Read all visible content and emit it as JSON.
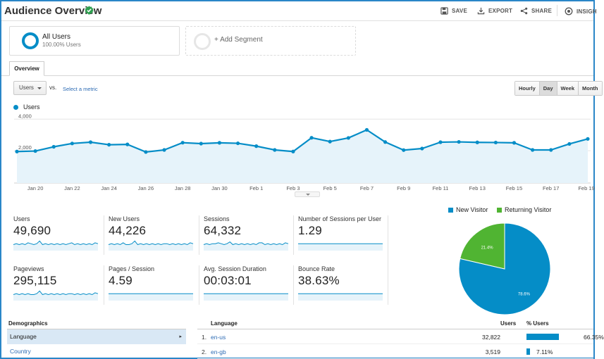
{
  "header": {
    "title": "Audience Overview",
    "actions": [
      {
        "label": "SAVE",
        "icon": "save-icon"
      },
      {
        "label": "EXPORT",
        "icon": "export-icon"
      },
      {
        "label": "SHARE",
        "icon": "share-icon"
      },
      {
        "label": "INSIGH",
        "icon": "insights-icon"
      }
    ]
  },
  "segments": {
    "active": {
      "name": "All Users",
      "sub": "100.00% Users"
    },
    "add_label": "+ Add Segment"
  },
  "tabs": {
    "overview": "Overview"
  },
  "controls": {
    "metric": "Users",
    "vs": "vs.",
    "select_metric": "Select a metric",
    "granularity": [
      "Hourly",
      "Day",
      "Week",
      "Month"
    ],
    "granularity_active": "Day"
  },
  "chart_data": {
    "type": "line",
    "series": [
      {
        "name": "Users",
        "color": "#058dc7",
        "values": [
          1950,
          1980,
          2250,
          2460,
          2540,
          2380,
          2400,
          1920,
          2050,
          2510,
          2450,
          2500,
          2470,
          2290,
          2050,
          1950,
          2820,
          2580,
          2810,
          3320,
          2550,
          2040,
          2140,
          2540,
          2560,
          2530,
          2520,
          2500,
          2050,
          2050,
          2430,
          2750
        ]
      }
    ],
    "x_ticks": [
      "Jan 20",
      "Jan 22",
      "Jan 24",
      "Jan 26",
      "Jan 28",
      "Jan 30",
      "Feb 1",
      "Feb 3",
      "Feb 5",
      "Feb 7",
      "Feb 9",
      "Feb 11",
      "Feb 13",
      "Feb 15",
      "Feb 17",
      "Feb 19"
    ],
    "y_ticks": [
      "4,000",
      "2,000"
    ],
    "ylim": [
      0,
      4000
    ]
  },
  "metrics": [
    {
      "label": "Users",
      "value": "49,690",
      "trend": [
        5,
        6,
        5,
        6,
        5,
        7,
        6,
        5,
        6,
        9,
        5,
        6,
        5,
        6,
        5,
        6,
        5,
        6,
        5,
        6,
        7,
        5,
        6,
        5,
        6,
        5,
        6,
        5,
        7,
        6
      ]
    },
    {
      "label": "New Users",
      "value": "44,226",
      "trend": [
        5,
        6,
        5,
        6,
        5,
        7,
        5,
        5,
        6,
        9,
        5,
        6,
        5,
        6,
        5,
        6,
        5,
        6,
        5,
        6,
        6,
        5,
        6,
        5,
        6,
        5,
        6,
        5,
        7,
        6
      ]
    },
    {
      "label": "Sessions",
      "value": "64,332",
      "trend": [
        5,
        6,
        5,
        6,
        6,
        7,
        6,
        5,
        6,
        8,
        5,
        6,
        5,
        6,
        5,
        6,
        5,
        6,
        5,
        7,
        7,
        5,
        6,
        5,
        6,
        5,
        6,
        5,
        7,
        6
      ]
    },
    {
      "label": "Number of Sessions per User",
      "value": "1.29",
      "trend": [
        6,
        6,
        6,
        6,
        6,
        6,
        6,
        6,
        6,
        6,
        6,
        6,
        6,
        6,
        6,
        6,
        6,
        6,
        6,
        6,
        6,
        6,
        6,
        6,
        6,
        6,
        6,
        6,
        6,
        6
      ]
    },
    {
      "label": "Pageviews",
      "value": "295,115",
      "trend": [
        5,
        6,
        5,
        6,
        5,
        6,
        5,
        5,
        6,
        9,
        5,
        6,
        5,
        6,
        5,
        6,
        5,
        6,
        5,
        6,
        6,
        5,
        6,
        5,
        6,
        5,
        6,
        5,
        7,
        6
      ]
    },
    {
      "label": "Pages / Session",
      "value": "4.59",
      "trend": [
        6,
        6,
        6,
        6,
        6,
        6,
        6,
        6,
        6,
        6,
        6,
        6,
        6,
        6,
        6,
        6,
        6,
        6,
        6,
        6,
        6,
        6,
        6,
        6,
        6,
        6,
        6,
        6,
        6,
        6
      ]
    },
    {
      "label": "Avg. Session Duration",
      "value": "00:03:01",
      "trend": [
        6,
        6,
        6,
        6,
        6,
        6,
        6,
        6,
        6,
        6,
        6,
        6,
        6,
        6,
        6,
        6,
        6,
        6,
        6,
        6,
        6,
        6,
        6,
        6,
        6,
        6,
        6,
        6,
        6,
        6
      ]
    },
    {
      "label": "Bounce Rate",
      "value": "38.63%",
      "trend": [
        6,
        6,
        6,
        6,
        6,
        6,
        6,
        6,
        6,
        6,
        6,
        6,
        6,
        6,
        6,
        6,
        6,
        6,
        6,
        6,
        6,
        6,
        6,
        6,
        6,
        6,
        6,
        6,
        6,
        6
      ]
    }
  ],
  "pie": {
    "legend": [
      {
        "label": "New Visitor",
        "color": "#058dc7"
      },
      {
        "label": "Returning Visitor",
        "color": "#50b432"
      }
    ],
    "values": [
      78.6,
      21.4
    ],
    "labels": [
      "78.6%",
      "21.4%"
    ]
  },
  "demographics": {
    "title": "Demographics",
    "items": [
      {
        "label": "Language",
        "selected": true
      },
      {
        "label": "Country",
        "selected": false
      }
    ]
  },
  "language_table": {
    "headers": {
      "language": "Language",
      "users": "Users",
      "pct": "% Users"
    },
    "rows": [
      {
        "idx": "1.",
        "name": "en-us",
        "users": "32,822",
        "pct": "66.35%",
        "share": 66.35
      },
      {
        "idx": "2.",
        "name": "en-gb",
        "users": "3,519",
        "pct": "7.11%",
        "share": 7.11
      }
    ]
  }
}
